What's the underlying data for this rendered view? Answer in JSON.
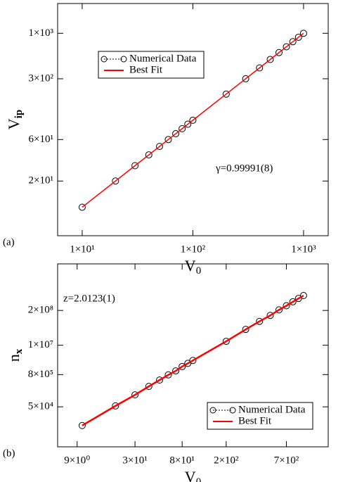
{
  "chart_data": [
    {
      "type": "scatter",
      "panel_label": "(a)",
      "xlabel": {
        "text": "V",
        "sub": "0"
      },
      "ylabel": {
        "text": "V",
        "sub": "ip"
      },
      "annotation": "γ=0.99991(8)",
      "log_x": true,
      "log_y": true,
      "legend": "upper left",
      "x": [
        10,
        20,
        30,
        40,
        50,
        60,
        70,
        80,
        90,
        100,
        200,
        300,
        400,
        500,
        600,
        700,
        800,
        900,
        1000
      ],
      "series": [
        {
          "name": "Numerical Data",
          "color": "#000000",
          "marker": "circle",
          "values": [
            10,
            20,
            30,
            40,
            50,
            60,
            70,
            80,
            90,
            100,
            200,
            300,
            400,
            500,
            600,
            700,
            800,
            900,
            1000
          ]
        },
        {
          "name": "Best Fit",
          "color": "#ff0000",
          "marker": "line",
          "values": [
            10,
            20,
            30,
            40,
            50,
            60,
            70,
            80,
            90,
            100,
            200,
            300,
            400,
            500,
            600,
            700,
            800,
            900,
            1000
          ]
        }
      ],
      "xlim": [
        6,
        1670
      ],
      "ylim": [
        4.7,
        2200
      ],
      "xticks": [
        {
          "value": 10,
          "label": "1×10¹"
        },
        {
          "value": 100,
          "label": "1×10²"
        },
        {
          "value": 1000,
          "label": "1×10³"
        }
      ],
      "yticks": [
        {
          "value": 20,
          "label": "2×10¹"
        },
        {
          "value": 60,
          "label": "6×10¹"
        },
        {
          "value": 300,
          "label": "3×10²"
        },
        {
          "value": 1000,
          "label": "1×10³"
        }
      ]
    },
    {
      "type": "scatter",
      "panel_label": "(b)",
      "xlabel": {
        "text": "V",
        "sub": "0"
      },
      "ylabel": {
        "text": "n",
        "sub": "x"
      },
      "annotation": "z=2.0123(1)",
      "log_x": true,
      "log_y": true,
      "legend": "lower right",
      "x": [
        10,
        20,
        30,
        40,
        50,
        60,
        70,
        80,
        90,
        100,
        200,
        300,
        400,
        500,
        600,
        700,
        800,
        900,
        1000
      ],
      "series": [
        {
          "name": "Numerical Data",
          "color": "#000000",
          "marker": "circle",
          "values": [
            10000,
            54000,
            140000,
            290000,
            500000,
            780000,
            1100000,
            1600000,
            2100000,
            2700000,
            14000000,
            39000000,
            78000000,
            130000000,
            210000000,
            300000000,
            420000000,
            560000000,
            720000000
          ]
        },
        {
          "name": "Best Fit",
          "color": "#ff0000",
          "marker": "line",
          "values": [
            10000,
            54000,
            140000,
            290000,
            500000,
            780000,
            1100000,
            1600000,
            2100000,
            2700000,
            14000000,
            39000000,
            78000000,
            130000000,
            210000000,
            300000000,
            420000000,
            560000000,
            720000000
          ]
        }
      ],
      "xlim": [
        6,
        1670
      ],
      "ylim": [
        1600,
        11000000000
      ],
      "xticks": [
        {
          "value": 9,
          "label": "9×10⁰"
        },
        {
          "value": 30,
          "label": "3×10¹"
        },
        {
          "value": 80,
          "label": "8×10¹"
        },
        {
          "value": 200,
          "label": "2×10²"
        },
        {
          "value": 700,
          "label": "7×10²"
        }
      ],
      "yticks": [
        {
          "value": 50000,
          "label": "5×10⁴"
        },
        {
          "value": 800000,
          "label": "8×10⁵"
        },
        {
          "value": 10000000,
          "label": "1×10⁷"
        },
        {
          "value": 200000000,
          "label": "2×10⁸"
        }
      ]
    }
  ]
}
